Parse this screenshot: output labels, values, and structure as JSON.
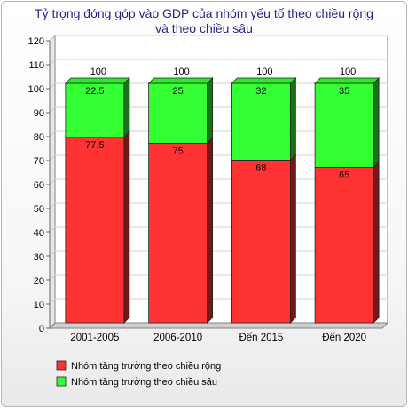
{
  "chart_data": {
    "type": "bar",
    "stacked": true,
    "three_d": true,
    "title_lines": [
      "Tỷ trọng đóng góp vào GDP của nhóm yếu tố theo chiều rộng",
      "và theo chiều sâu"
    ],
    "categories": [
      "2001-2005",
      "2006-2010",
      "Đến 2015",
      "Đến 2020"
    ],
    "series": [
      {
        "name": "Nhóm tăng trưởng theo chiều rộng",
        "values": [
          77.5,
          75,
          68,
          65
        ],
        "labels": [
          "77.5",
          "75",
          "68",
          "65"
        ],
        "color": "#ff3333"
      },
      {
        "name": "Nhóm tăng trưởng theo chiều sâu",
        "values": [
          22.5,
          25,
          32,
          35
        ],
        "labels": [
          "22.5",
          "25",
          "32",
          "35"
        ],
        "color": "#33ff33"
      }
    ],
    "totals": [
      100,
      100,
      100,
      100
    ],
    "total_labels": [
      "100",
      "100",
      "100",
      "100"
    ],
    "ylim": [
      0,
      120
    ],
    "yticks": [
      "0",
      "10",
      "20",
      "30",
      "40",
      "50",
      "60",
      "70",
      "80",
      "90",
      "100",
      "110",
      "120"
    ],
    "grid": true,
    "legend_position": "bottom-left"
  }
}
